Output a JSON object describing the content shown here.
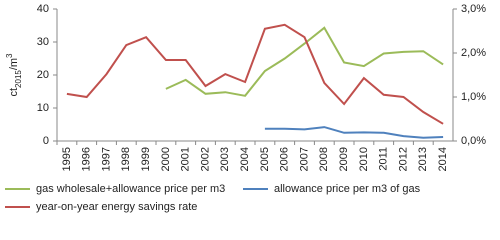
{
  "chart_data": {
    "type": "line",
    "ylabel_parts": [
      "ct",
      "2015",
      "/m",
      "3"
    ],
    "categories": [
      "1995",
      "1996",
      "1997",
      "1998",
      "1999",
      "2000",
      "2001",
      "2002",
      "2003",
      "2004",
      "2005",
      "2006",
      "2007",
      "2008",
      "2009",
      "2010",
      "2011",
      "2012",
      "2013",
      "2014"
    ],
    "ylim": [
      0,
      40
    ],
    "yticks": [
      0,
      10,
      20,
      30,
      40
    ],
    "y2lim": [
      0,
      3
    ],
    "y2ticks": [
      {
        "value": 0,
        "label": "0,0%"
      },
      {
        "value": 1,
        "label": "1,0%"
      },
      {
        "value": 2,
        "label": "2,0%"
      },
      {
        "value": 3,
        "label": "3,0%"
      }
    ],
    "grid": false,
    "series": [
      {
        "name": "gas wholesale+allowance price per m3",
        "color": "#9bbb59",
        "values": [
          null,
          null,
          null,
          null,
          null,
          15.8,
          18.5,
          14.3,
          14.8,
          13.7,
          21.2,
          25.0,
          29.5,
          34.3,
          23.8,
          22.7,
          26.5,
          27.0,
          27.2,
          23.2
        ]
      },
      {
        "name": "allowance price per m3 of gas",
        "color": "#4f81bd",
        "values": [
          null,
          null,
          null,
          null,
          null,
          null,
          null,
          null,
          null,
          null,
          3.7,
          3.7,
          3.5,
          4.2,
          2.5,
          2.6,
          2.5,
          1.5,
          1.0,
          1.2
        ]
      },
      {
        "name": "year-on-year energy savings rate",
        "color": "#c0504d",
        "axis": "y2",
        "values": [
          1.07,
          1.0,
          1.52,
          2.18,
          2.36,
          1.84,
          1.84,
          1.25,
          1.52,
          1.34,
          2.55,
          2.64,
          2.36,
          1.32,
          0.84,
          1.43,
          1.05,
          1.0,
          0.66,
          0.39
        ]
      }
    ]
  }
}
